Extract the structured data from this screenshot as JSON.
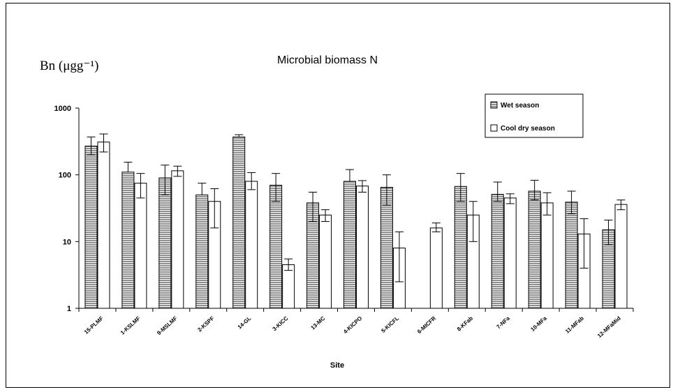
{
  "chart_data": {
    "type": "bar",
    "title": "Microbial biomass N",
    "ylabel": "Bn (μgg⁻¹)",
    "xlabel": "Site",
    "yscale": "log",
    "ylim": [
      1,
      1000
    ],
    "yticks": [
      "1",
      "10",
      "100",
      "1000"
    ],
    "grid": false,
    "legend_position": "top-right",
    "categories": [
      "15-PLMF",
      "1-KSLMF",
      "9-MSLMF",
      "2-KSPF",
      "14-GL",
      "3-KICC",
      "13-MC",
      "4-KICPO",
      "5-KICFL",
      "6-MICFR",
      "8-KFab",
      "7-NFa",
      "10-MFa",
      "11-MFab",
      "12-MFaMid"
    ],
    "series": [
      {
        "name": "Wet season",
        "pattern": "horizontal-lines",
        "values": [
          270,
          110,
          90,
          50,
          370,
          70,
          38,
          80,
          65,
          null,
          67,
          51,
          57,
          39,
          15
        ],
        "err_low": [
          200,
          null,
          50,
          null,
          null,
          40,
          20,
          null,
          35,
          null,
          40,
          40,
          42,
          26,
          9
        ],
        "err_high": [
          370,
          155,
          140,
          75,
          400,
          105,
          55,
          120,
          100,
          null,
          105,
          78,
          83,
          57,
          21
        ]
      },
      {
        "name": "Cool dry season",
        "pattern": "open",
        "values": [
          310,
          75,
          115,
          40,
          80,
          4.5,
          25,
          68,
          8,
          16,
          25,
          45,
          38,
          13,
          36
        ],
        "err_low": [
          220,
          45,
          95,
          16,
          60,
          3.7,
          20,
          55,
          2.5,
          14,
          10,
          37,
          25,
          4,
          30
        ],
        "err_high": [
          410,
          105,
          135,
          62,
          108,
          5.5,
          30,
          82,
          14,
          19,
          40,
          52,
          54,
          22,
          42
        ]
      }
    ],
    "colors": {
      "wet": "#9a9a9a",
      "wet_lines": "#ffffff",
      "dry": "#ffffff",
      "axis": "#000000"
    }
  }
}
